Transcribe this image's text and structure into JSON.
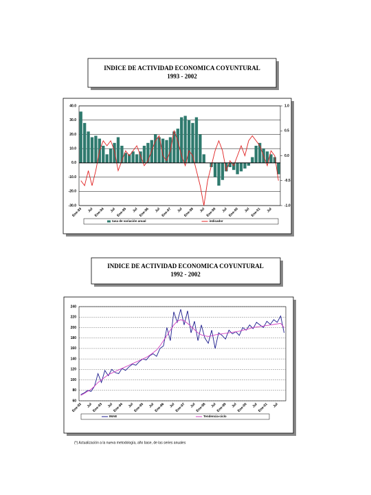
{
  "chart_data": [
    {
      "type": "bar",
      "title": "INDICE DE ACTIVIDAD ECONOMICA COYUNTURAL",
      "subtitle": "1993 - 2002",
      "categories": [
        "Ene-93",
        null,
        null,
        "Jul",
        null,
        null,
        "Ene-94",
        null,
        null,
        "Jul",
        null,
        null,
        "Ene-95",
        null,
        null,
        "Jul",
        null,
        null,
        "Ene-96",
        null,
        null,
        "Jul",
        null,
        null,
        "Ene-97",
        null,
        null,
        "Jul",
        null,
        null,
        "Ene-98",
        null,
        null,
        "Jul",
        null,
        null,
        "Ene-99",
        null,
        null,
        "Jul",
        null,
        null,
        "Ene-00",
        null,
        null,
        "Jul",
        null,
        null,
        "Ene-01",
        null,
        null,
        "Jul",
        null,
        null
      ],
      "series": [
        {
          "name": "tasa de variación anual",
          "color": "#2f7a6e",
          "type": "bar",
          "values": [
            36,
            28,
            22,
            18,
            19,
            17,
            12,
            6,
            10,
            14,
            18,
            12,
            7,
            6,
            8,
            6,
            8,
            12,
            14,
            16,
            20,
            18,
            17,
            16,
            18,
            22,
            24,
            32,
            33,
            30,
            28,
            32,
            20,
            6,
            0,
            -3,
            -10,
            -16,
            -12,
            -6,
            -3,
            -5,
            -8,
            -6,
            -4,
            -2,
            4,
            12,
            14,
            10,
            8,
            6,
            4,
            -8
          ]
        },
        {
          "name": "indicador",
          "color": "#e02020",
          "type": "line",
          "axis": "y2",
          "values": [
            -0.5,
            -0.6,
            -0.3,
            -0.6,
            -0.3,
            0.1,
            0.3,
            0.2,
            0.3,
            0.1,
            -0.3,
            -0.1,
            0.1,
            0.0,
            0.1,
            0.2,
            0.0,
            -0.2,
            -0.1,
            0.1,
            0.3,
            0.4,
            0.0,
            -0.1,
            0.1,
            0.5,
            0.3,
            0.0,
            -0.2,
            0.1,
            0.0,
            -0.3,
            -0.6,
            -1.0,
            -0.5,
            -0.2,
            0.1,
            0.3,
            0.1,
            -0.3,
            -0.1,
            -0.2,
            0.0,
            0.2,
            0.0,
            0.3,
            0.4,
            0.3,
            0.2,
            0.0,
            -0.2,
            0.1,
            0.0,
            -0.5
          ]
        }
      ],
      "ylim": [
        -30,
        40
      ],
      "yticks": [
        {
          "value": 40,
          "label": "40.0"
        },
        {
          "value": 30,
          "label": "30.0"
        },
        {
          "value": 20,
          "label": "20.0"
        },
        {
          "value": 10,
          "label": "10.0"
        },
        {
          "value": 0,
          "label": "0.0"
        },
        {
          "value": -10,
          "label": "-10.0"
        },
        {
          "value": -20,
          "label": "-20.0"
        },
        {
          "value": -30,
          "label": "-30.0"
        }
      ],
      "y2lim": [
        -1,
        1
      ],
      "y2ticks": [
        {
          "value": 1,
          "label": "1.0"
        },
        0.5,
        {
          "value": 0,
          "label": "0.0"
        },
        -0.5,
        {
          "value": -1,
          "label": "-1.0"
        }
      ],
      "grid": true
    },
    {
      "type": "line",
      "title": "INDICE DE ACTIVIDAD ECONOMICA COYUNTURAL",
      "subtitle": "1992 - 2002",
      "categories": [
        "Ene-92",
        null,
        null,
        "Jul",
        null,
        null,
        "Ene-93",
        null,
        null,
        "Jul",
        null,
        null,
        "Ene-94",
        null,
        null,
        "Jul",
        null,
        null,
        "Ene-95",
        null,
        null,
        "Jul",
        null,
        null,
        "Ene-96",
        null,
        null,
        "Jul",
        null,
        null,
        "Ene-97",
        null,
        null,
        "Jul",
        null,
        null,
        "Ene-98",
        null,
        null,
        "Jul",
        null,
        null,
        "Ene-99",
        null,
        null,
        "Jul",
        null,
        null,
        "Ene-00",
        null,
        null,
        "Jul",
        null,
        null,
        "Ene-01",
        null,
        null,
        "Jul",
        null,
        null
      ],
      "series": [
        {
          "name": "IMAE",
          "color": "#1a1a8c",
          "values": [
            72,
            75,
            80,
            78,
            88,
            112,
            95,
            118,
            108,
            120,
            114,
            112,
            122,
            118,
            125,
            130,
            128,
            135,
            140,
            138,
            146,
            150,
            145,
            160,
            165,
            200,
            175,
            230,
            210,
            235,
            205,
            232,
            190,
            212,
            175,
            205,
            180,
            170,
            195,
            160,
            190,
            185,
            178,
            195,
            188,
            192,
            185,
            200,
            195,
            205,
            198,
            210,
            205,
            200,
            212,
            206,
            215,
            210,
            222,
            190
          ]
        },
        {
          "name": "Tendencia-ciclo",
          "color": "#d040c0",
          "values": [
            70,
            74,
            78,
            82,
            88,
            95,
            100,
            105,
            110,
            113,
            116,
            119,
            122,
            125,
            128,
            131,
            134,
            137,
            140,
            143,
            147,
            152,
            157,
            165,
            175,
            185,
            195,
            205,
            212,
            215,
            213,
            208,
            202,
            196,
            190,
            186,
            184,
            183,
            184,
            186,
            187,
            188,
            189,
            190,
            191,
            192,
            193,
            195,
            196,
            198,
            200,
            201,
            202,
            203,
            204,
            205,
            206,
            207,
            208,
            200
          ]
        }
      ],
      "ylim": [
        60,
        240
      ],
      "yticks": [
        60,
        80,
        100,
        120,
        140,
        160,
        180,
        200,
        220,
        240
      ],
      "grid": true
    }
  ],
  "footnote": "(*) Actualización a la nueva metodología, año base, de las series anuales"
}
